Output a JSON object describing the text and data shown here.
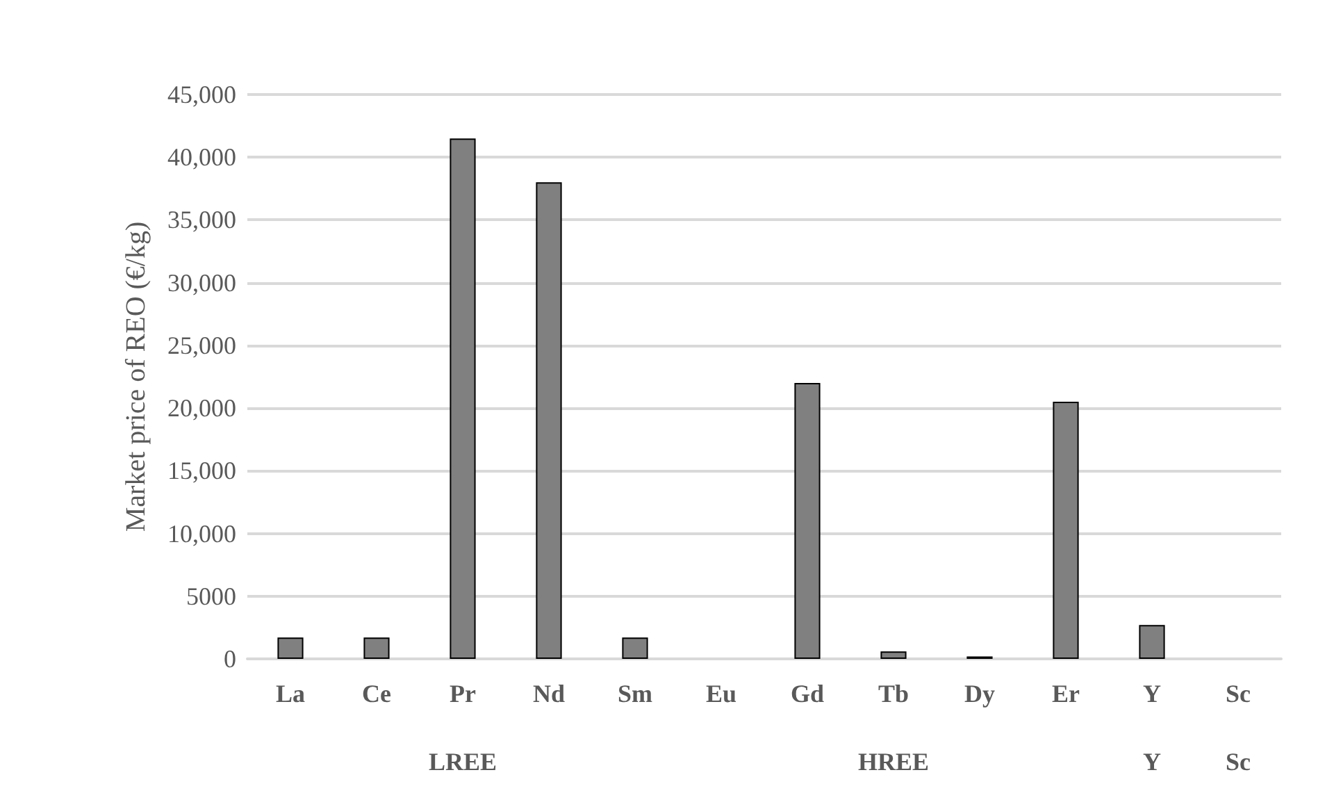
{
  "chart_data": {
    "type": "bar",
    "ylabel": "Market price of REO (€/kg)",
    "categories": [
      "La",
      "Ce",
      "Pr",
      "Nd",
      "Sm",
      "Eu",
      "Gd",
      "Tb",
      "Dy",
      "Er",
      "Y",
      "Sc"
    ],
    "values": [
      1700,
      1700,
      41500,
      38000,
      1700,
      0,
      22000,
      600,
      200,
      20500,
      2700,
      0
    ],
    "color": "#808080",
    "ylim": [
      0,
      45000
    ],
    "yticks": [
      0,
      5000,
      {
        "value": 10000,
        "label": "10,000"
      },
      {
        "value": 15000,
        "label": "15,000"
      },
      {
        "value": 20000,
        "label": "20,000"
      },
      {
        "value": 25000,
        "label": "25,000"
      },
      {
        "value": 30000,
        "label": "30,000"
      },
      {
        "value": 35000,
        "label": "35,000"
      },
      {
        "value": 40000,
        "label": "40,000"
      },
      {
        "value": 45000,
        "label": "45,000"
      }
    ],
    "grid": "y",
    "annotations": [
      "LREE",
      "HREE",
      "Y",
      "Sc"
    ]
  }
}
